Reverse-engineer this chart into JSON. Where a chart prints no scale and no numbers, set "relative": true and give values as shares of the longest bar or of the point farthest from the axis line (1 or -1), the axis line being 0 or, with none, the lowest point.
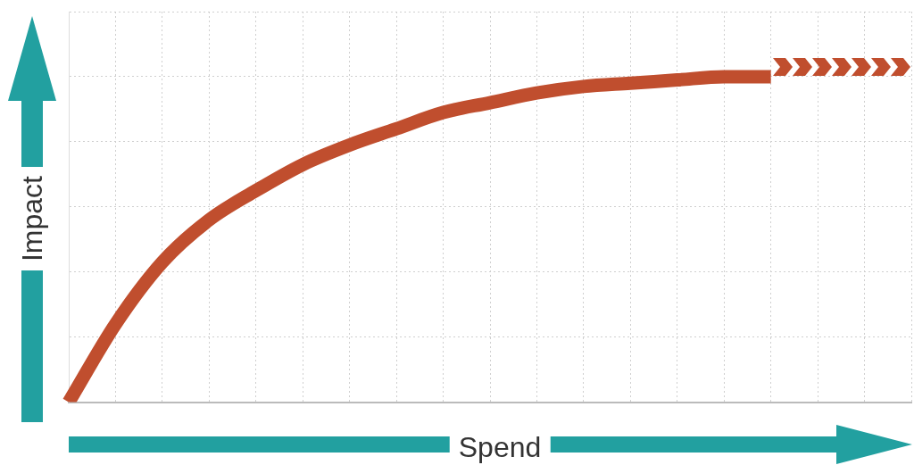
{
  "chart_data": {
    "type": "line",
    "relative": true,
    "xlabel": "Spend",
    "ylabel": "Impact",
    "grid": true,
    "marker": "none",
    "categories": [
      null,
      null,
      null,
      null,
      null,
      null,
      null,
      null,
      null,
      null,
      null,
      null,
      null,
      null,
      null,
      null,
      null,
      null,
      null
    ],
    "series": [
      {
        "color": "#c04e2e",
        "values": [
          0,
          0.24,
          0.43,
          0.56,
          0.65,
          0.73,
          0.79,
          0.84,
          0.89,
          0.92,
          0.95,
          0.97,
          0.98,
          0.99,
          1,
          1,
          null,
          null,
          null
        ]
      }
    ]
  }
}
